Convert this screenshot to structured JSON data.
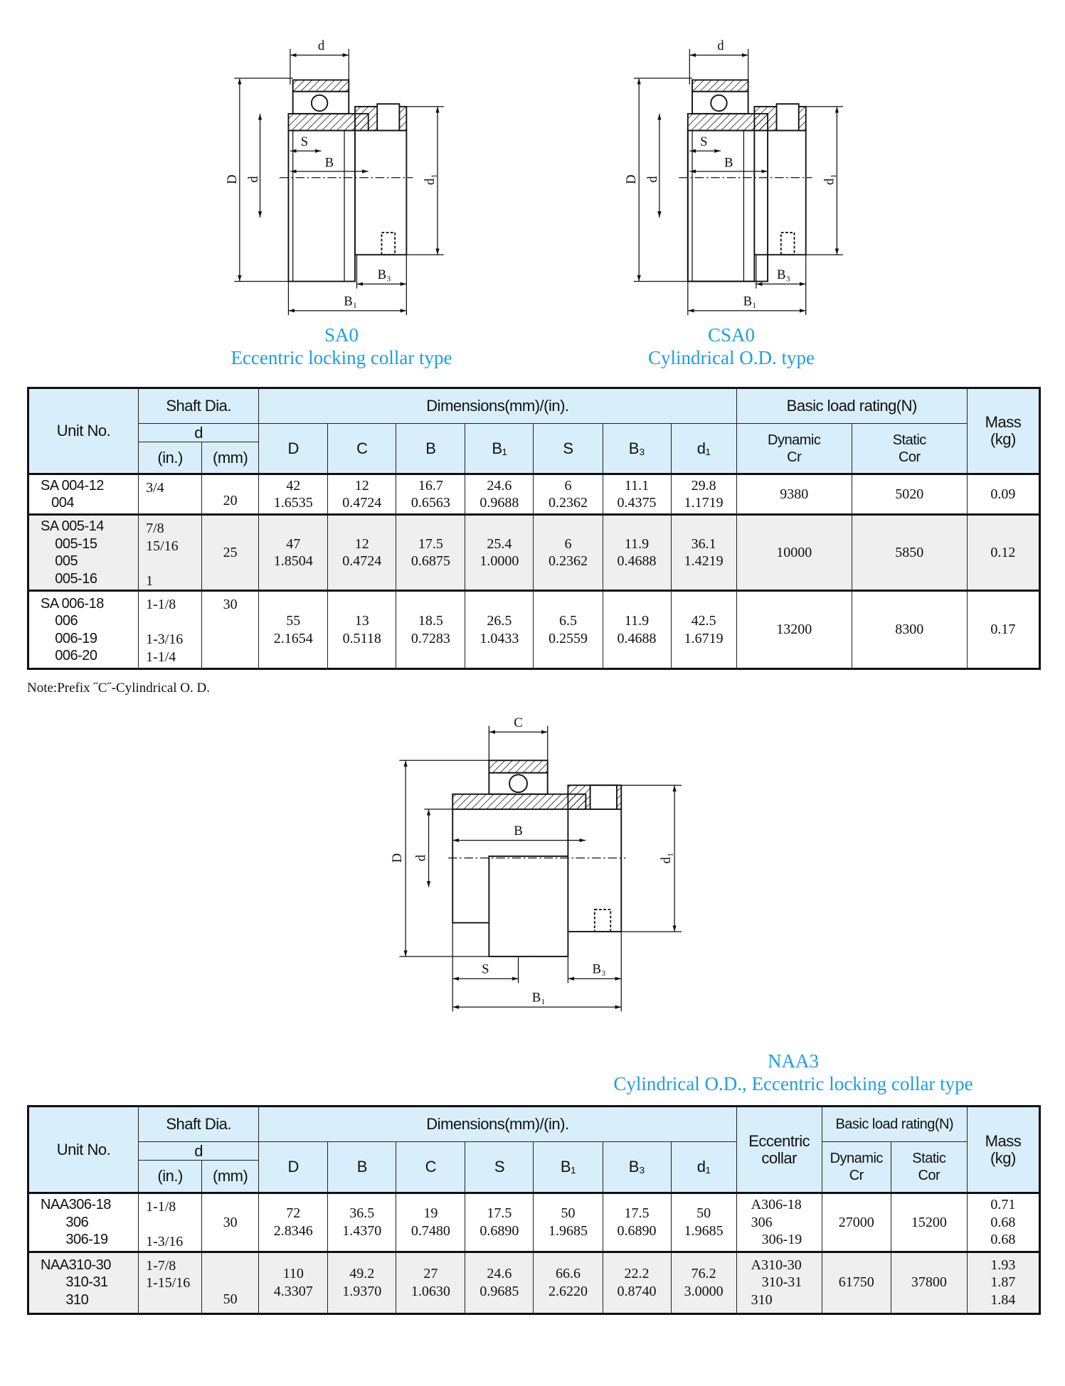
{
  "drawings": {
    "sa0": {
      "labels": {
        "d_top": "d",
        "D": "D",
        "d": "d",
        "d1": "d₁",
        "S": "S",
        "B": "B",
        "B3": "B₃",
        "B1": "B₁"
      }
    },
    "csa0": {
      "labels": {
        "d_top": "d",
        "D": "D",
        "d": "d",
        "d1": "d₁",
        "S": "S",
        "B": "B",
        "B3": "B₃",
        "B1": "B₁"
      }
    },
    "naa3": {
      "labels": {
        "C": "C",
        "D": "D",
        "d": "d",
        "d1": "d₁",
        "S": "S",
        "B": "B",
        "B3": "B₃",
        "B1": "B₁"
      }
    }
  },
  "titles": {
    "sa0": {
      "code": "SA0",
      "desc": "Eccentric locking collar type"
    },
    "csa0": {
      "code": "CSA0",
      "desc": "Cylindrical O.D.  type"
    },
    "naa3": {
      "code": "NAA3",
      "desc": "Cylindrical O.D., Eccentric locking collar type"
    }
  },
  "colors": {
    "title": "#1b9ee2",
    "header_bg": "#d8eefa",
    "alt_row": "#efefef"
  },
  "table1": {
    "headers": {
      "unit_no": "Unit No.",
      "shaft_dia": "Shaft Dia.",
      "d": "d",
      "in": "(in.)",
      "mm": "(mm)",
      "dimensions": "Dimensions(mm)/(in).",
      "load_rating": "Basic load rating(N)",
      "mass": "Mass\n(kg)",
      "cols": [
        "D",
        "C",
        "B",
        "B₁",
        "S",
        "B₃",
        "d₁"
      ],
      "dynamic": "Dynamic\nCr",
      "static": "Static\nCor"
    },
    "rows": [
      {
        "unit": "SA 004-12\n   004",
        "in": "3/4\n",
        "mm": "20",
        "dims": [
          "42\n1.6535",
          "12\n0.4724",
          "16.7\n0.6563",
          "24.6\n0.9688",
          "6\n0.2362",
          "11.1\n0.4375",
          "29.8\n1.1719"
        ],
        "dynamic": "9380",
        "static": "5020",
        "mass": "0.09"
      },
      {
        "unit": "SA 005-14\n    005-15\n    005\n    005-16",
        "in": "7/8\n15/16\n\n1",
        "mm": "25",
        "dims": [
          "47\n1.8504",
          "12\n0.4724",
          "17.5\n0.6875",
          "25.4\n1.0000",
          "6\n0.2362",
          "11.9\n0.4688",
          "36.1\n1.4219"
        ],
        "dynamic": "10000",
        "static": "5850",
        "mass": "0.12"
      },
      {
        "unit": "SA 006-18\n    006\n    006-19\n    006-20",
        "in": "1-1/8\n\n1-3/16\n1-1/4",
        "mm": "30",
        "dims": [
          "55\n2.1654",
          "13\n0.5118",
          "18.5\n0.7283",
          "26.5\n1.0433",
          "6.5\n0.2559",
          "11.9\n0.4688",
          "42.5\n1.6719"
        ],
        "dynamic": "13200",
        "static": "8300",
        "mass": "0.17"
      }
    ]
  },
  "note": "Note:Prefix ˝C˝-Cylindrical  O. D.",
  "table2": {
    "headers": {
      "unit_no": "Unit No.",
      "shaft_dia": "Shaft Dia.",
      "d": "d",
      "in": "(in.)",
      "mm": "(mm)",
      "dimensions": "Dimensions(mm)/(in).",
      "eccentric": "Eccentric\ncollar",
      "load_rating": "Basic load rating(N)",
      "mass": "Mass\n(kg)",
      "cols": [
        "D",
        "B",
        "C",
        "S",
        "B₁",
        "B₃",
        "d₁"
      ],
      "dynamic": "Dynamic\nCr",
      "static": "Static\nCor"
    },
    "rows": [
      {
        "unit": "NAA306-18\n       306\n       306-19",
        "in": "1-1/8\n\n1-3/16",
        "mm": "30",
        "dims": [
          "72\n2.8346",
          "36.5\n1.4370",
          "19\n0.7480",
          "17.5\n0.6890",
          "50\n1.9685",
          "17.5\n0.6890",
          "50\n1.9685"
        ],
        "eccentric": "A306-18\n306\n   306-19",
        "dynamic": "27000",
        "static": "15200",
        "mass": "0.71\n0.68\n0.68"
      },
      {
        "unit": "NAA310-30\n       310-31\n       310",
        "in": "1-7/8\n1-15/16\n",
        "mm": "50",
        "dims": [
          "110\n4.3307",
          "49.2\n1.9370",
          "27\n1.0630",
          "24.6\n0.9685",
          "66.6\n2.6220",
          "22.2\n0.8740",
          "76.2\n3.0000"
        ],
        "eccentric": "A310-30\n   310-31\n310",
        "dynamic": "61750",
        "static": "37800",
        "mass": "1.93\n1.87\n1.84"
      }
    ]
  }
}
